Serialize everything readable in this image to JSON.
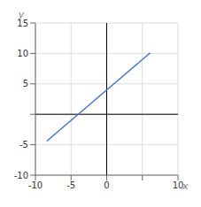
{
  "chart_data": {
    "type": "line",
    "x": [
      -8.4,
      6.1
    ],
    "values": [
      -4.4,
      10.1
    ],
    "color": "#4472c4",
    "xlabel": "x",
    "ylabel": "y",
    "xlim": [
      -10,
      10
    ],
    "ylim": [
      -10,
      15
    ],
    "xticks": [
      -10,
      -5,
      0,
      {
        "value": 5,
        "label": null
      },
      10
    ],
    "yticks": [
      -10,
      -5,
      {
        "value": 0,
        "label": null
      },
      5,
      10,
      15
    ],
    "grid": true
  }
}
